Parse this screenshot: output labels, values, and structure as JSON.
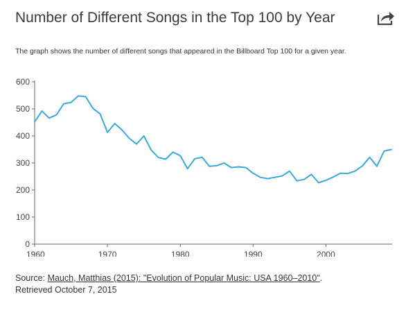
{
  "header": {
    "title": "Number of Different Songs in the Top 100 by Year",
    "share_icon": "share-arrow-icon"
  },
  "description": "The graph shows the number of different songs that appeared in the Billboard Top 100 for a given year.",
  "source": {
    "prefix": "Source: ",
    "link_text": "Mauch, Matthias (2015): \"Evolution of Popular Music: USA 1960–2010\"",
    "suffix": ".",
    "retrieved": "Retrieved October 7, 2015"
  },
  "colors": {
    "line": "#3aa8d8",
    "axis": "#666666",
    "text": "#333333"
  },
  "chart_data": {
    "type": "line",
    "title": "",
    "xlabel": "",
    "ylabel": "",
    "xlim": [
      1960,
      2009
    ],
    "ylim": [
      0,
      600
    ],
    "x_ticks": [
      1960,
      1970,
      1980,
      1990,
      2000
    ],
    "y_ticks": [
      0,
      100,
      200,
      300,
      400,
      500,
      600
    ],
    "grid": false,
    "legend": "none",
    "series": [
      {
        "x": [
          1960,
          1961,
          1962,
          1963,
          1964,
          1965,
          1966,
          1967,
          1968,
          1969,
          1970,
          1971,
          1972,
          1973,
          1974,
          1975,
          1976,
          1977,
          1978,
          1979,
          1980,
          1981,
          1982,
          1983,
          1984,
          1985,
          1986,
          1987,
          1988,
          1989,
          1990,
          1991,
          1992,
          1993,
          1994,
          1995,
          1996,
          1997,
          1998,
          1999,
          2000,
          2001,
          2002,
          2003,
          2004,
          2005,
          2006,
          2007,
          2008,
          2009
        ],
        "values": [
          452,
          492,
          466,
          478,
          519,
          524,
          548,
          545,
          502,
          481,
          413,
          446,
          422,
          391,
          370,
          400,
          348,
          320,
          314,
          340,
          327,
          279,
          316,
          321,
          288,
          290,
          300,
          283,
          286,
          283,
          262,
          247,
          242,
          247,
          252,
          270,
          234,
          239,
          258,
          227,
          236,
          248,
          262,
          261,
          270,
          289,
          321,
          288,
          344,
          350
        ]
      }
    ]
  }
}
